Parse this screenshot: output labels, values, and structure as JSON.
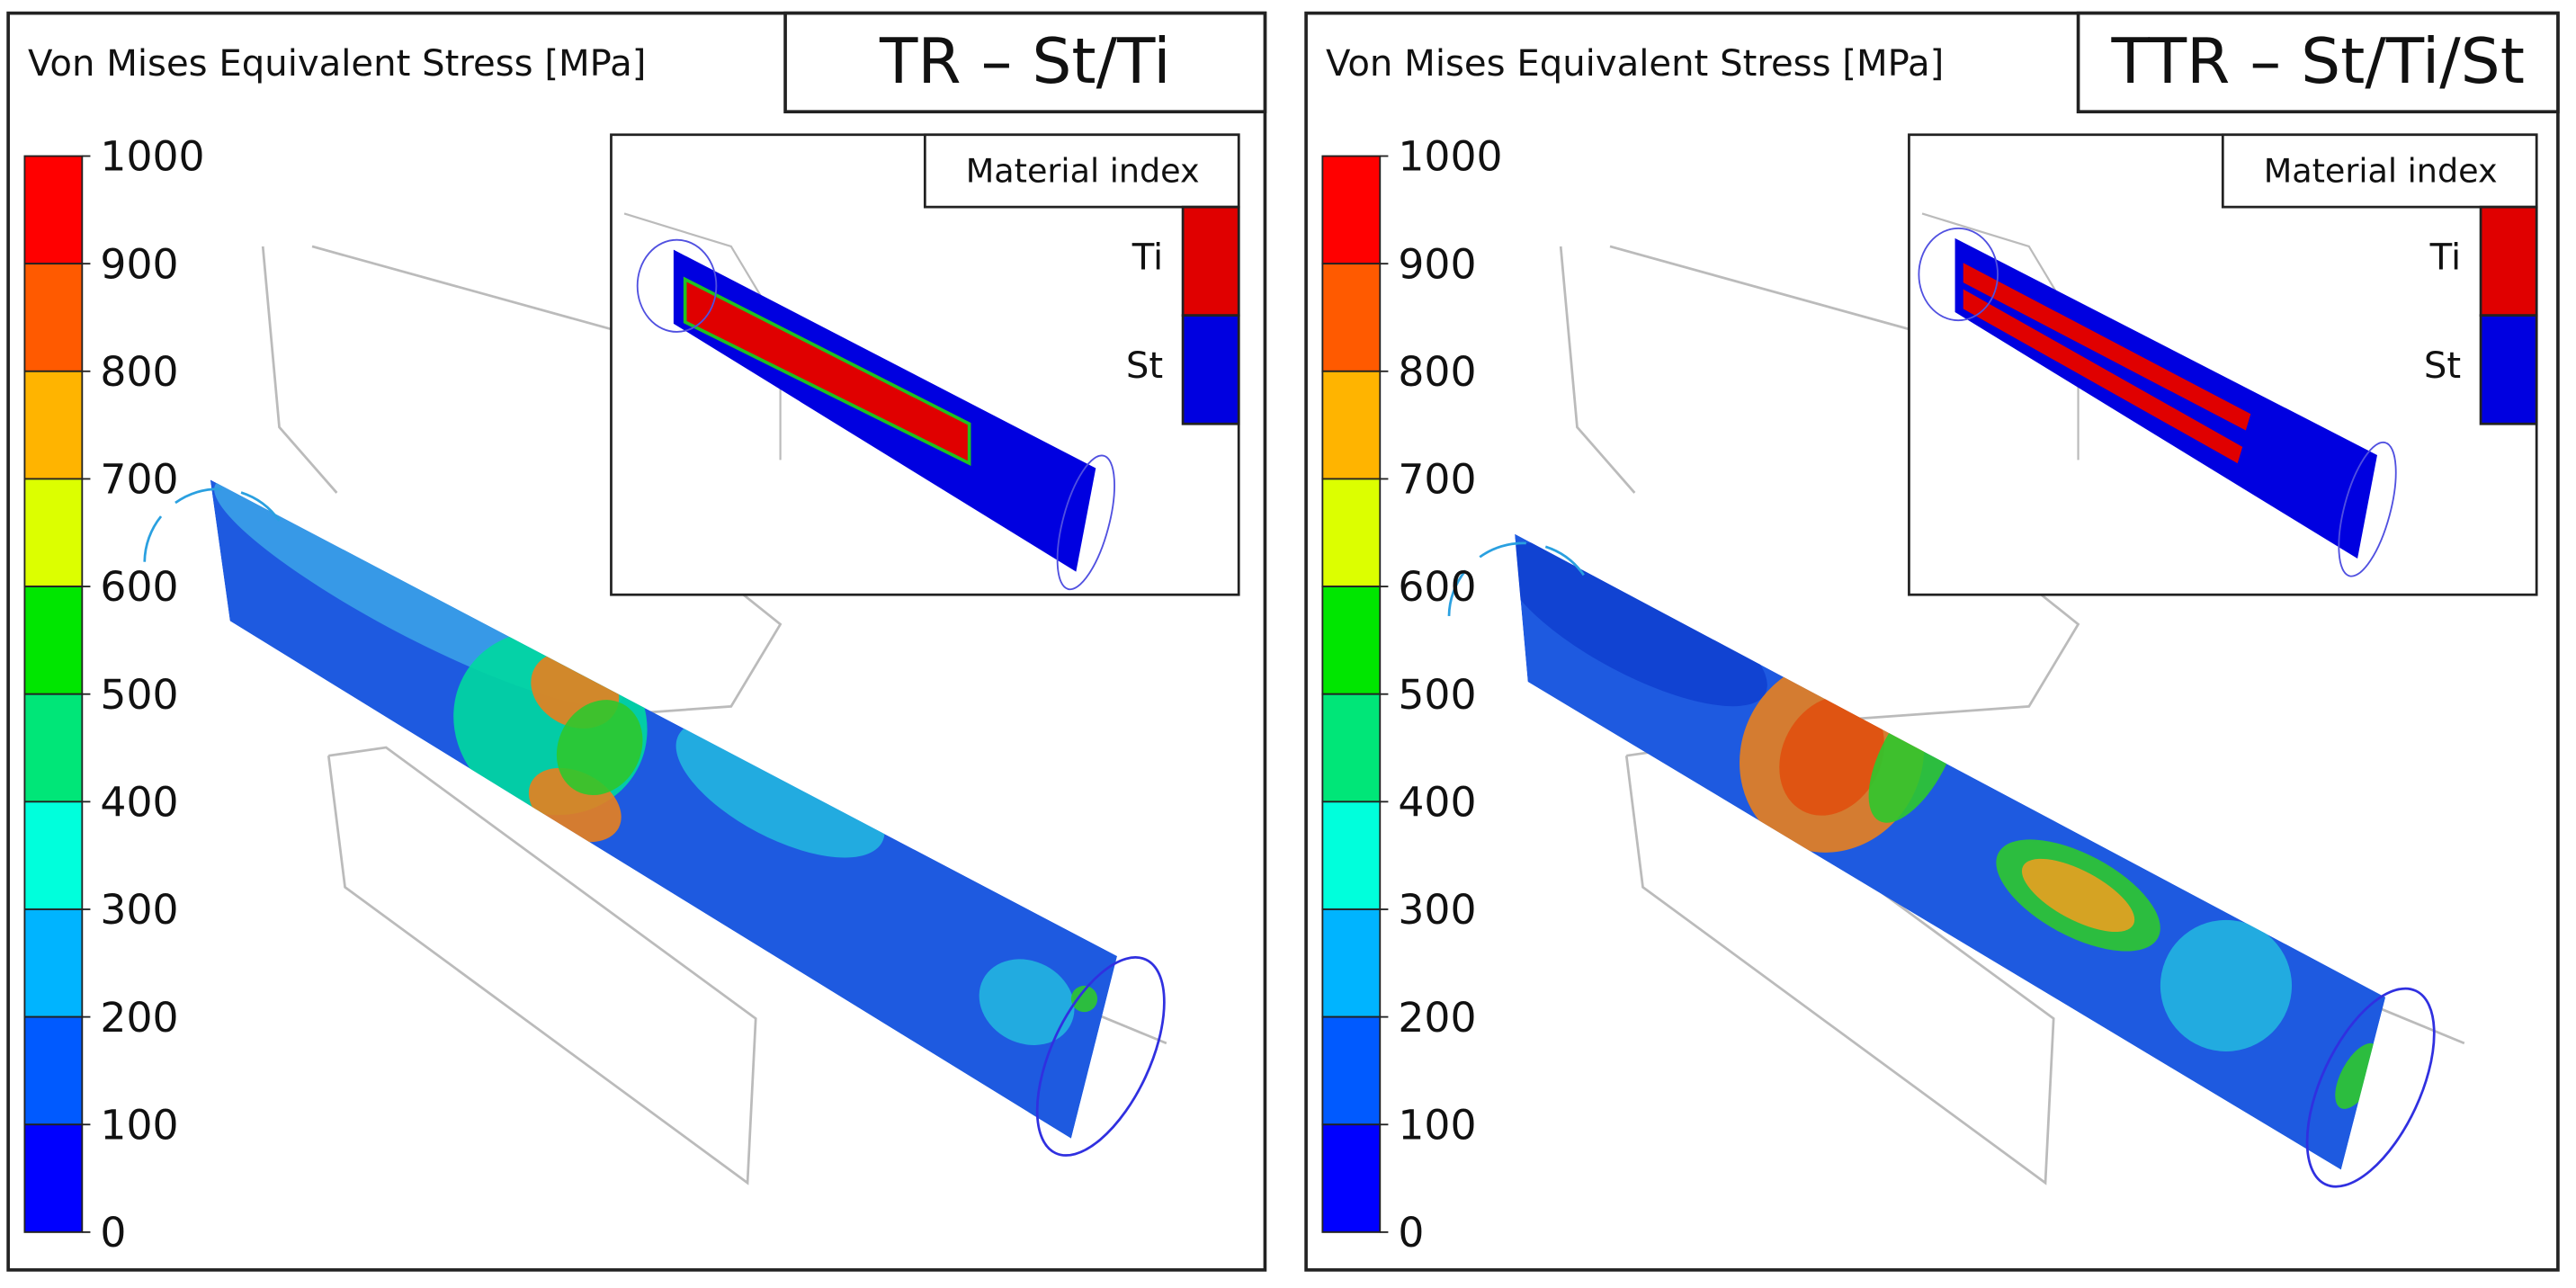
{
  "panels": [
    {
      "label": "Von Mises Equivalent Stress [MPa]",
      "title": "TR – St/Ti",
      "colorbar": {
        "ticks": [
          1000,
          900,
          800,
          700,
          600,
          500,
          400,
          300,
          200,
          100,
          0
        ],
        "colors": [
          "#ff0000",
          "#ff5a00",
          "#ffb400",
          "#dcff00",
          "#00e600",
          "#00e678",
          "#00ffdc",
          "#00b4ff",
          "#005aff",
          "#0000ff"
        ]
      },
      "inset": {
        "title": "Material index",
        "materials": [
          {
            "name": "Ti",
            "color": "#e00000"
          },
          {
            "name": "St",
            "color": "#0000e0"
          }
        ]
      }
    },
    {
      "label": "Von Mises Equivalent Stress [MPa]",
      "title": "TTR – St/Ti/St",
      "colorbar": {
        "ticks": [
          1000,
          900,
          800,
          700,
          600,
          500,
          400,
          300,
          200,
          100,
          0
        ],
        "colors": [
          "#ff0000",
          "#ff5a00",
          "#ffb400",
          "#dcff00",
          "#00e600",
          "#00e678",
          "#00ffdc",
          "#00b4ff",
          "#005aff",
          "#0000ff"
        ]
      },
      "inset": {
        "title": "Material index",
        "materials": [
          {
            "name": "Ti",
            "color": "#e00000"
          },
          {
            "name": "St",
            "color": "#0000e0"
          }
        ]
      }
    }
  ]
}
